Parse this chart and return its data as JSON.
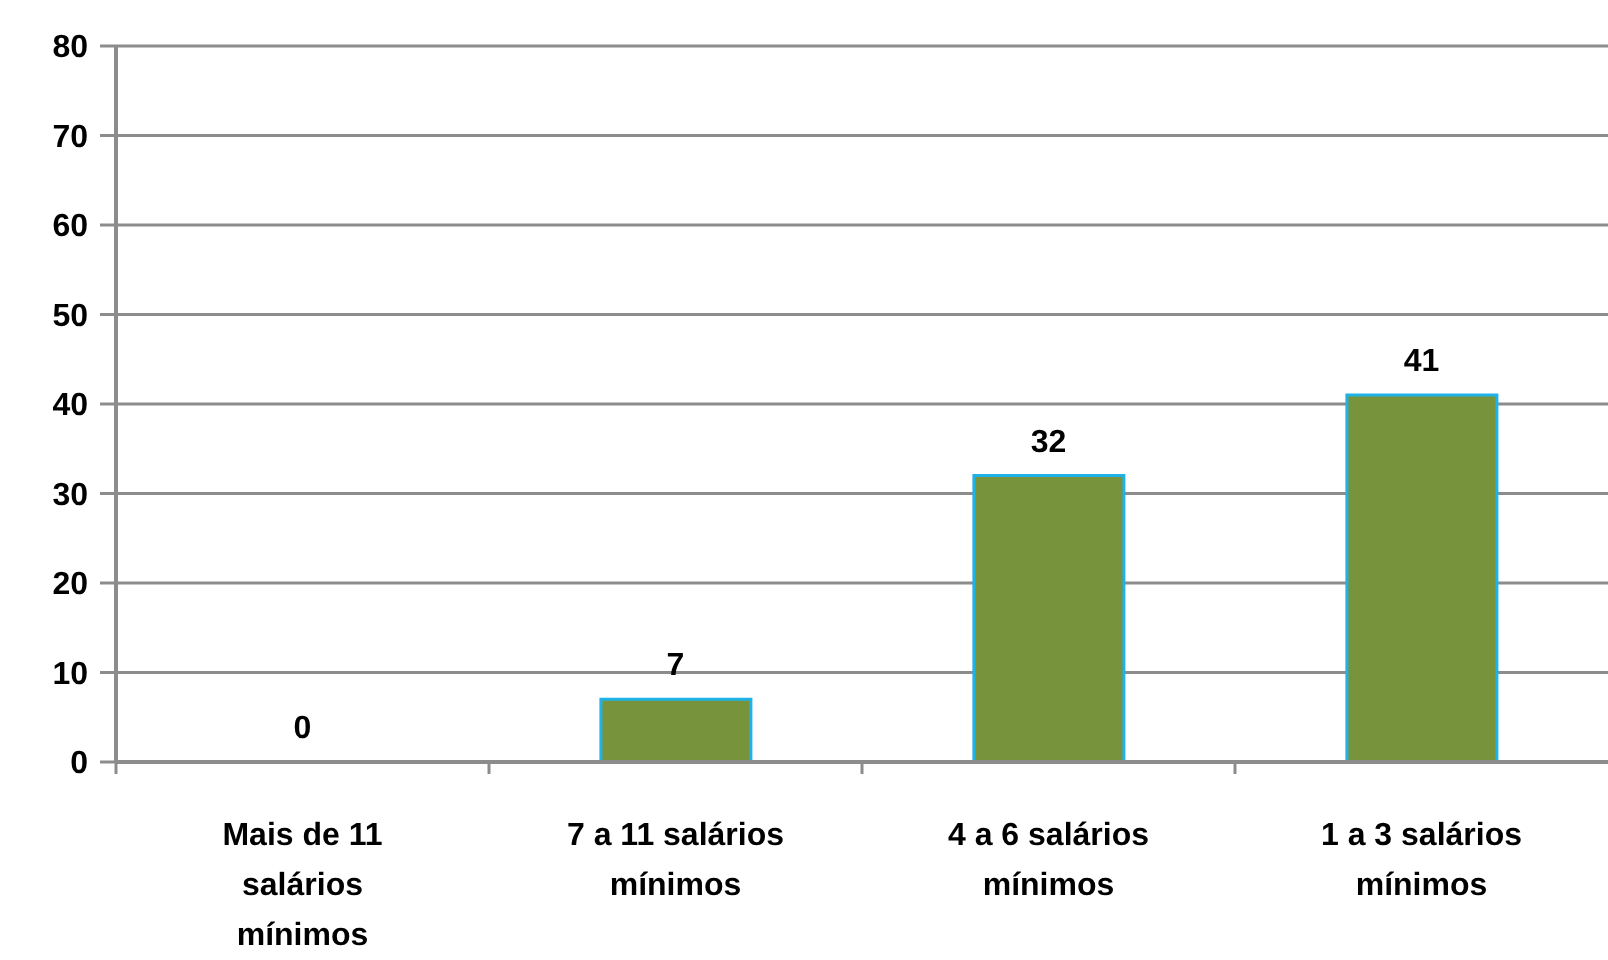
{
  "chart_data": {
    "type": "bar",
    "categories": [
      "Mais de 11 salários mínimos",
      "7 a 11 salários mínimos",
      "4 a 6 salários mínimos",
      "1 a 3 salários mínimos"
    ],
    "values": [
      0,
      7,
      32,
      41
    ],
    "color": "#77933c",
    "ylim": [
      0,
      80
    ],
    "yticks": [
      0,
      10,
      20,
      30,
      40,
      50,
      60,
      70,
      80
    ],
    "grid": "y",
    "data_labels": true
  }
}
